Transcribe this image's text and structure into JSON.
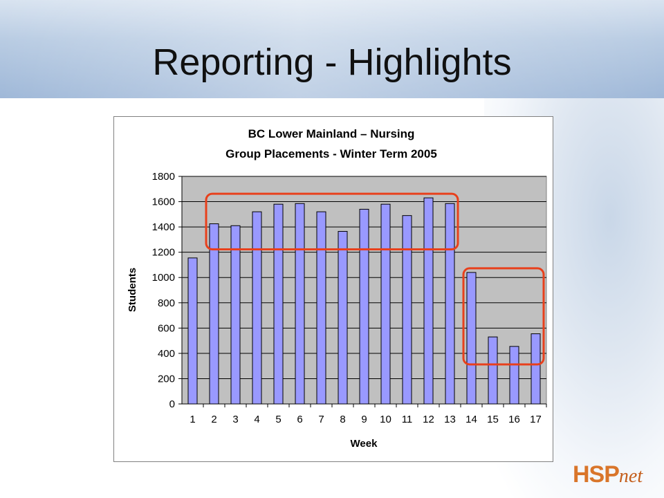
{
  "slide": {
    "title": "Reporting - Highlights",
    "logo": "HSPnet"
  },
  "colors": {
    "bar_fill": "#9999ff",
    "bar_stroke": "#000000",
    "plot_bg": "#c0c0c0",
    "highlight": "#e8401c"
  },
  "chart_data": {
    "type": "bar",
    "title": "BC Lower Mainland – Nursing",
    "subtitle": "Group Placements - Winter Term 2005",
    "xlabel": "Week",
    "ylabel": "Students",
    "categories": [
      "1",
      "2",
      "3",
      "4",
      "5",
      "6",
      "7",
      "8",
      "9",
      "10",
      "11",
      "12",
      "13",
      "14",
      "15",
      "16",
      "17"
    ],
    "values": [
      1155,
      1425,
      1410,
      1520,
      1580,
      1585,
      1520,
      1365,
      1540,
      1580,
      1490,
      1630,
      1585,
      1040,
      530,
      455,
      555
    ],
    "ylim": [
      0,
      1800
    ],
    "yticks": [
      0,
      200,
      400,
      600,
      800,
      1000,
      1200,
      1400,
      1600,
      1800
    ],
    "grid": true,
    "legend": "none",
    "highlights": [
      {
        "from_category": "2",
        "to_category": "13"
      },
      {
        "from_category": "14",
        "to_category": "17"
      }
    ]
  }
}
